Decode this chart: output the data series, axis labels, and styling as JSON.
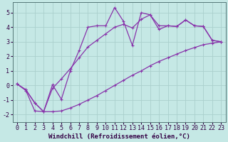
{
  "xlabel": "Windchill (Refroidissement éolien,°C)",
  "bg_color": "#c5e8e5",
  "grid_color": "#aacfcc",
  "line_color": "#8833aa",
  "marker_color": "#8833aa",
  "x_data": [
    0,
    1,
    2,
    3,
    4,
    5,
    6,
    7,
    8,
    9,
    10,
    11,
    12,
    13,
    14,
    15,
    16,
    17,
    18,
    19,
    20,
    21,
    22,
    23
  ],
  "y_main": [
    0.1,
    -0.3,
    -1.2,
    -1.8,
    0.05,
    -0.95,
    1.0,
    2.4,
    4.0,
    4.1,
    4.1,
    5.35,
    4.4,
    2.75,
    5.0,
    4.85,
    3.85,
    4.1,
    4.05,
    4.5,
    4.1,
    4.05,
    3.1,
    3.0
  ],
  "y_lower": [
    0.1,
    -0.35,
    -1.75,
    -1.8,
    -1.8,
    -1.75,
    -1.55,
    -1.3,
    -1.0,
    -0.7,
    -0.35,
    0.0,
    0.35,
    0.7,
    1.0,
    1.35,
    1.65,
    1.9,
    2.15,
    2.4,
    2.6,
    2.8,
    2.9,
    3.0
  ],
  "y_upper": [
    0.1,
    -0.3,
    -1.2,
    -1.8,
    -0.2,
    0.45,
    1.15,
    1.9,
    2.65,
    3.1,
    3.55,
    4.0,
    4.2,
    3.95,
    4.55,
    4.85,
    4.1,
    4.1,
    4.05,
    4.5,
    4.1,
    4.05,
    3.1,
    3.0
  ],
  "xlim": [
    -0.5,
    23.5
  ],
  "ylim": [
    -2.5,
    5.7
  ],
  "yticks": [
    -2,
    -1,
    0,
    1,
    2,
    3,
    4,
    5
  ],
  "xticks": [
    0,
    1,
    2,
    3,
    4,
    5,
    6,
    7,
    8,
    9,
    10,
    11,
    12,
    13,
    14,
    15,
    16,
    17,
    18,
    19,
    20,
    21,
    22,
    23
  ],
  "label_fontsize": 6.5,
  "tick_fontsize": 6
}
